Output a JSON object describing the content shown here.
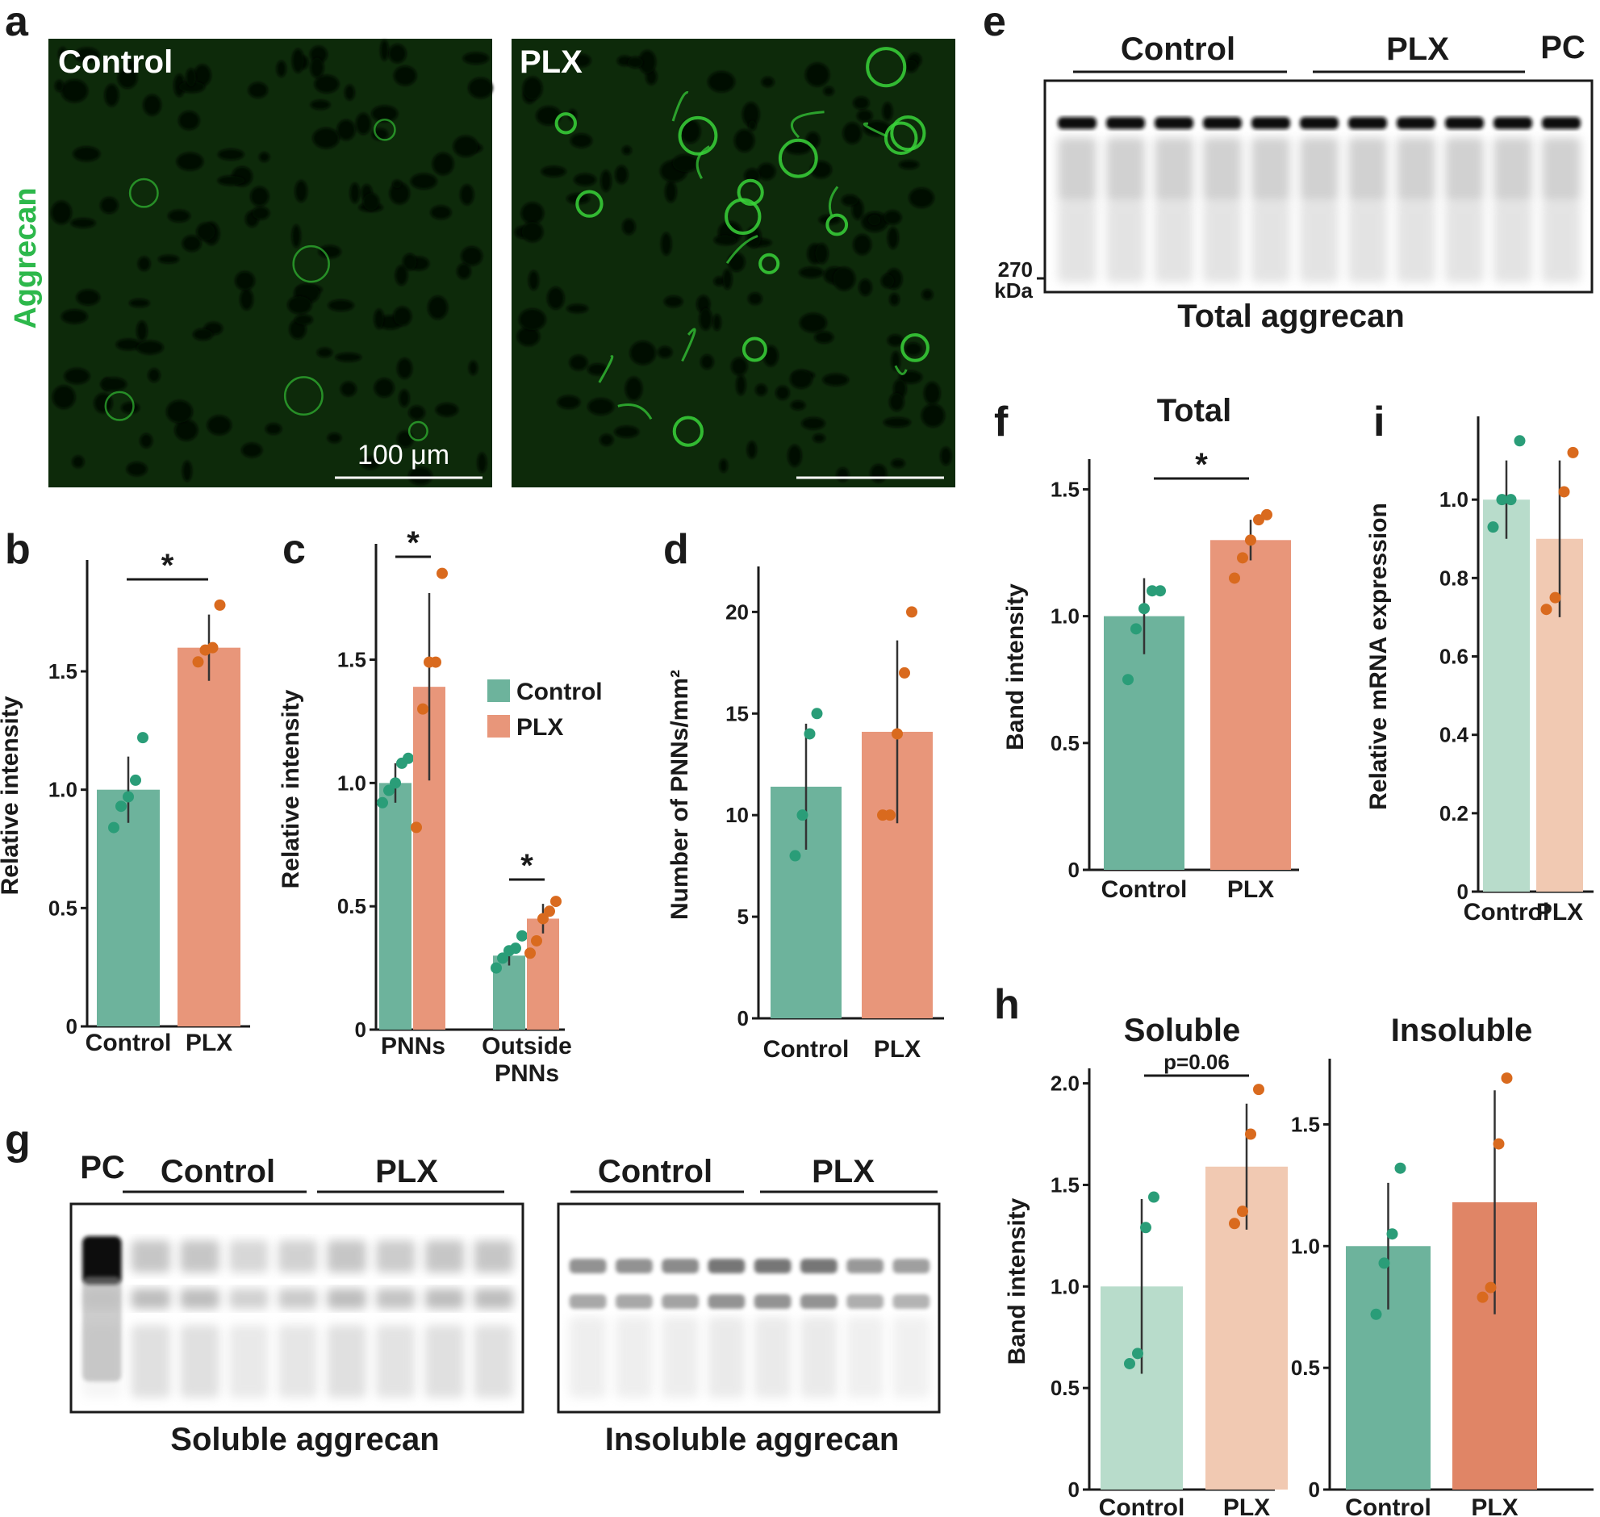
{
  "colors": {
    "control_bar": "#6db39c",
    "plx_bar": "#e8967a",
    "control_dot": "#2a9d78",
    "plx_dot": "#d96a1e",
    "control_bar_light": "#b8dccb",
    "plx_bar_light": "#f1c9b2",
    "plx_bar_h_insoluble": "#e08566",
    "micrograph_bg": "#0d2a0a",
    "micrograph_signal": "#39d43a"
  },
  "panels": {
    "a": {
      "letter": "a",
      "stain": "Aggrecan",
      "left_label": "Control",
      "right_label": "PLX",
      "scale_bar": "100 μm"
    },
    "e": {
      "letter": "e",
      "groups": [
        "Control",
        "PLX",
        "PC"
      ],
      "marker": "270",
      "marker_unit": "kDa",
      "caption": "Total aggrecan",
      "lanes": 11
    },
    "g": {
      "letter": "g",
      "left_blot": {
        "groups": [
          "PC",
          "Control",
          "PLX"
        ],
        "caption": "Soluble aggrecan",
        "lanes": 9
      },
      "right_blot": {
        "groups": [
          "Control",
          "PLX"
        ],
        "caption": "Insoluble aggrecan",
        "lanes": 8
      }
    },
    "c_legend": {
      "items": [
        "Control",
        "PLX"
      ]
    }
  },
  "chart_data": [
    {
      "panel": "b",
      "type": "bar",
      "categories": [
        "Control",
        "PLX"
      ],
      "values": [
        1.0,
        1.6
      ],
      "errors": [
        0.14,
        0.14
      ],
      "points": [
        [
          0.84,
          0.93,
          0.97,
          1.04,
          1.22
        ],
        [
          1.54,
          1.59,
          1.6,
          1.78
        ]
      ],
      "ylabel": "Relative intensity",
      "ylim": [
        0,
        1.95
      ],
      "yticks": [
        0,
        0.5,
        1.0,
        1.5
      ],
      "ytick_labels": [
        "0",
        "0.5",
        "1.0",
        "1.5"
      ],
      "significance": "*"
    },
    {
      "panel": "c",
      "type": "bar",
      "groups": [
        "PNNs",
        "Outside PNNs"
      ],
      "group_labels": [
        [
          "PNNs"
        ],
        [
          "Outside",
          "PNNs"
        ]
      ],
      "series": [
        {
          "name": "Control",
          "values": [
            1.0,
            0.3
          ],
          "errors": [
            0.08,
            0.04
          ],
          "points": [
            [
              0.92,
              0.97,
              1.0,
              1.08,
              1.1
            ],
            [
              0.25,
              0.29,
              0.32,
              0.33,
              0.38
            ]
          ]
        },
        {
          "name": "PLX",
          "values": [
            1.39,
            0.45
          ],
          "errors": [
            0.38,
            0.06
          ],
          "points": [
            [
              0.82,
              1.3,
              1.49,
              1.49,
              1.85
            ],
            [
              0.31,
              0.36,
              0.45,
              0.48,
              0.52
            ]
          ]
        }
      ],
      "ylabel": "Relative intensity",
      "ylim": [
        0,
        1.95
      ],
      "yticks": [
        0,
        0.5,
        1.0,
        1.5
      ],
      "ytick_labels": [
        "0",
        "0.5",
        "1.0",
        "1.5"
      ],
      "significance": [
        "*",
        "*"
      ]
    },
    {
      "panel": "d",
      "type": "bar",
      "categories": [
        "Control",
        "PLX"
      ],
      "values": [
        11.4,
        14.1
      ],
      "errors": [
        3.1,
        4.5
      ],
      "points": [
        [
          8,
          10,
          14,
          15
        ],
        [
          10,
          10,
          14,
          17,
          20
        ]
      ],
      "ylabel": "Number of PNNs/mm²",
      "ylim": [
        0,
        22
      ],
      "yticks": [
        0,
        5,
        10,
        15,
        20
      ],
      "ytick_labels": [
        "0",
        "5",
        "10",
        "15",
        "20"
      ]
    },
    {
      "panel": "f",
      "type": "bar",
      "title": "Total",
      "categories": [
        "Control",
        "PLX"
      ],
      "values": [
        1.0,
        1.3
      ],
      "errors": [
        0.15,
        0.08
      ],
      "points": [
        [
          0.75,
          0.95,
          1.03,
          1.1,
          1.1
        ],
        [
          1.15,
          1.23,
          1.3,
          1.38,
          1.4
        ]
      ],
      "ylabel": "Band intensity",
      "ylim": [
        0,
        1.6
      ],
      "yticks": [
        0,
        0.5,
        1.0,
        1.5
      ],
      "ytick_labels": [
        "0",
        "0.5",
        "1.0",
        "1.5"
      ],
      "significance": "*"
    },
    {
      "panel": "i",
      "type": "bar",
      "categories": [
        "Control",
        "PLX"
      ],
      "values": [
        1.0,
        0.9
      ],
      "errors": [
        0.1,
        0.2
      ],
      "points": [
        [
          0.93,
          1.0,
          1.0,
          1.15
        ],
        [
          0.72,
          0.75,
          1.02,
          1.12
        ]
      ],
      "ylabel": "Relative mRNA expression",
      "ylim": [
        0,
        1.2
      ],
      "yticks": [
        0,
        0.2,
        0.4,
        0.6,
        0.8,
        1.0
      ],
      "ytick_labels": [
        "0",
        "0.2",
        "0.4",
        "0.6",
        "0.8",
        "1.0"
      ]
    },
    {
      "panel": "h-soluble",
      "type": "bar",
      "title": "Soluble",
      "categories": [
        "Control",
        "PLX"
      ],
      "values": [
        1.0,
        1.59
      ],
      "errors": [
        0.43,
        0.31
      ],
      "points": [
        [
          0.62,
          0.67,
          1.29,
          1.44
        ],
        [
          1.31,
          1.37,
          1.75,
          1.97
        ]
      ],
      "ylabel": "Band intensity",
      "ylim": [
        0,
        2.05
      ],
      "yticks": [
        0,
        0.5,
        1.0,
        1.5,
        2.0
      ],
      "ytick_labels": [
        "0",
        "0.5",
        "1.0",
        "1.5",
        "2.0"
      ],
      "significance": "p=0.06"
    },
    {
      "panel": "h-insoluble",
      "type": "bar",
      "title": "Insoluble",
      "categories": [
        "Control",
        "PLX"
      ],
      "values": [
        1.0,
        1.18
      ],
      "errors": [
        0.26,
        0.46
      ],
      "points": [
        [
          0.72,
          0.93,
          1.05,
          1.32
        ],
        [
          0.79,
          0.83,
          1.42,
          1.69
        ]
      ],
      "ylim": [
        0,
        1.75
      ],
      "yticks": [
        0,
        0.5,
        1.0,
        1.5
      ],
      "ytick_labels": [
        "0",
        "0.5",
        "1.0",
        "1.5"
      ]
    }
  ]
}
